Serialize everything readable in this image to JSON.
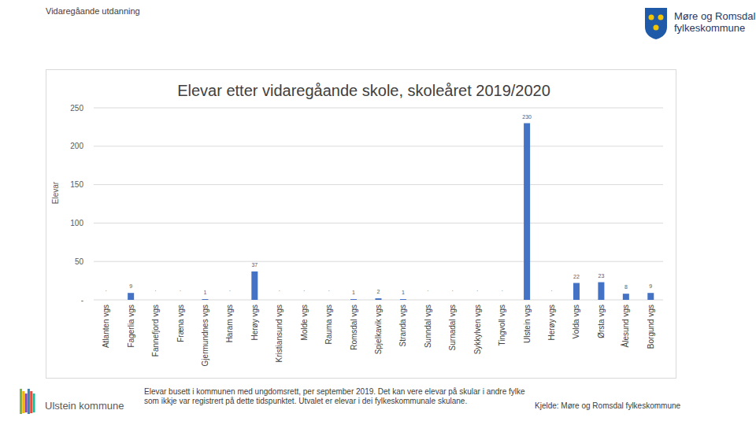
{
  "page": {
    "header": "Vidaregåande utdanning",
    "logo_lines": [
      "Møre og Romsdal",
      "fylkeskommune"
    ],
    "municipality": "Ulstein kommune",
    "note": "Elevar busett i kommunen med ungdomsrett, per september 2019. Det kan vere elevar på skular i andre fylke som ikkje var registrert på dette tidspunktet. Utvalet er elevar i dei fylkeskommunale skulane.",
    "source": "Kjelde: Møre og Romsdal fylkeskommune"
  },
  "chart_data": {
    "type": "bar",
    "title": "Elevar etter vidaregåande skole, skoleåret 2019/2020",
    "y_label": "Elevar",
    "categories": [
      "Atlanten vgs",
      "Fagerlia vgs",
      "Fannefjord vgs",
      "Fræna vgs",
      "Gjermundnes vgs",
      "Haram vgs",
      "Herøy vgs",
      "Kristiansund vgs",
      "Molde vgs",
      "Rauma vgs",
      "Romsdal vgs",
      "Spjelkavik vgs",
      "Stranda vgs",
      "Sunndal vgs",
      "Surnadal vgs",
      "Sykkylven vgs",
      "Tingvoll vgs",
      "Ulstein vgs",
      "Herøy vgs",
      "Volda vgs",
      "Ørsta vgs",
      "Ålesund vgs",
      "Borgund vgs"
    ],
    "values": [
      null,
      9,
      null,
      null,
      1,
      null,
      37,
      null,
      null,
      null,
      1,
      2,
      1,
      null,
      null,
      null,
      null,
      230,
      null,
      22,
      23,
      8,
      9
    ],
    "value_labels": [
      ".",
      "9",
      ".",
      ".",
      "1",
      ".",
      "37",
      ".",
      ".",
      ".",
      "1",
      "2",
      "1",
      ".",
      ".",
      ".",
      ".",
      "230",
      ".",
      "22",
      "23",
      "8",
      "9"
    ],
    "color": "#4472c4",
    "ylim": [
      0,
      250
    ],
    "yticks": [
      {
        "value": 0,
        "label": "-"
      },
      50,
      100,
      150,
      200,
      250
    ],
    "grid": true,
    "data_labels": true
  }
}
